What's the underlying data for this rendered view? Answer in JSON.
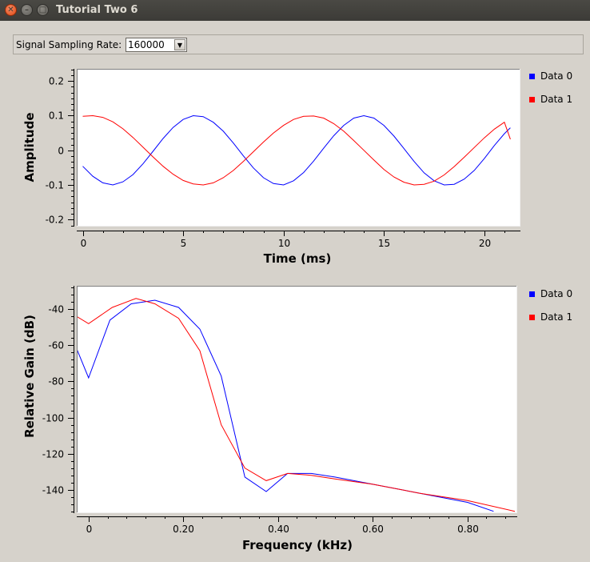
{
  "window": {
    "title": "Tutorial Two 6"
  },
  "toolbar": {
    "label": "Signal Sampling Rate:",
    "sample_rate": "160000"
  },
  "colors": {
    "series0": "#0000ff",
    "series1": "#ff0000",
    "plot_bg": "#ffffff",
    "window_bg": "#d6d2cb"
  },
  "chart_data": [
    {
      "type": "line",
      "xlabel": "Time (ms)",
      "ylabel": "Amplitude",
      "xlim": [
        -0.3,
        21.8
      ],
      "ylim": [
        -0.22,
        0.235
      ],
      "x_ticks": [
        "0",
        "5",
        "10",
        "15",
        "20"
      ],
      "x_tick_values": [
        0,
        5,
        10,
        15,
        20
      ],
      "y_ticks": [
        "0.2",
        "0.1",
        "0",
        "-0.1",
        "-0.2"
      ],
      "y_tick_values": [
        0.2,
        0.1,
        0,
        -0.1,
        -0.2
      ],
      "legend_position": "right",
      "series": [
        {
          "name": "Data 0",
          "color": "#0000ff",
          "x": [
            0,
            0.5,
            1,
            1.5,
            2,
            2.5,
            3,
            3.5,
            4,
            4.5,
            5,
            5.5,
            6,
            6.5,
            7,
            7.5,
            8,
            8.5,
            9,
            9.5,
            10,
            10.5,
            11,
            11.5,
            12,
            12.5,
            13,
            13.5,
            14,
            14.5,
            15,
            15.5,
            16,
            16.5,
            17,
            17.5,
            18,
            18.5,
            19,
            19.5,
            20,
            20.5,
            21,
            21.3
          ],
          "y": [
            -0.046,
            -0.075,
            -0.094,
            -0.1,
            -0.091,
            -0.07,
            -0.039,
            -0.003,
            0.034,
            0.066,
            0.089,
            0.1,
            0.097,
            0.081,
            0.055,
            0.021,
            -0.016,
            -0.051,
            -0.079,
            -0.096,
            -0.1,
            -0.088,
            -0.064,
            -0.031,
            0.006,
            0.042,
            0.072,
            0.093,
            0.1,
            0.093,
            0.072,
            0.041,
            0.005,
            -0.032,
            -0.065,
            -0.088,
            -0.1,
            -0.098,
            -0.083,
            -0.058,
            -0.024,
            0.014,
            0.048,
            0.065
          ]
        },
        {
          "name": "Data 1",
          "color": "#ff0000",
          "x": [
            0,
            0.5,
            1,
            1.5,
            2,
            2.5,
            3,
            3.5,
            4,
            4.5,
            5,
            5.5,
            6,
            6.5,
            7,
            7.5,
            8,
            8.5,
            9,
            9.5,
            10,
            10.5,
            11,
            11.5,
            12,
            12.5,
            13,
            13.5,
            14,
            14.5,
            15,
            15.5,
            16,
            16.5,
            17,
            17.5,
            18,
            18.5,
            19,
            19.5,
            20,
            20.5,
            21,
            21.3
          ],
          "y": [
            0.098,
            0.1,
            0.095,
            0.082,
            0.062,
            0.037,
            0.009,
            -0.019,
            -0.046,
            -0.069,
            -0.087,
            -0.097,
            -0.1,
            -0.094,
            -0.079,
            -0.058,
            -0.032,
            -0.004,
            0.024,
            0.05,
            0.072,
            0.089,
            0.098,
            0.099,
            0.093,
            0.077,
            0.055,
            0.028,
            0.0,
            -0.028,
            -0.055,
            -0.077,
            -0.092,
            -0.1,
            -0.098,
            -0.089,
            -0.071,
            -0.047,
            -0.02,
            0.008,
            0.036,
            0.061,
            0.081,
            0.032
          ]
        }
      ]
    },
    {
      "type": "line",
      "xlabel": "Frequency (kHz)",
      "ylabel": "Relative Gain (dB)",
      "xlim": [
        -0.025,
        0.905
      ],
      "ylim": [
        -153,
        -27
      ],
      "x_ticks": [
        "0",
        "0.20",
        "0.40",
        "0.60",
        "0.80"
      ],
      "x_tick_values": [
        0,
        0.2,
        0.4,
        0.6,
        0.8
      ],
      "y_ticks": [
        "-40",
        "-60",
        "-80",
        "-100",
        "-120",
        "-140"
      ],
      "y_tick_values": [
        -40,
        -60,
        -80,
        -100,
        -120,
        -140
      ],
      "legend_position": "right",
      "series": [
        {
          "name": "Data 0",
          "color": "#0000ff",
          "x": [
            -0.025,
            0,
            0.045,
            0.09,
            0.14,
            0.19,
            0.235,
            0.28,
            0.33,
            0.375,
            0.42,
            0.47,
            0.52,
            0.6,
            0.7,
            0.8,
            0.855
          ],
          "y": [
            -62,
            -78,
            -46,
            -37,
            -35,
            -39,
            -51,
            -77,
            -133,
            -141,
            -131,
            -131,
            -133,
            -137,
            -142,
            -147,
            -152
          ]
        },
        {
          "name": "Data 1",
          "color": "#ff0000",
          "x": [
            -0.025,
            0,
            0.05,
            0.1,
            0.14,
            0.19,
            0.235,
            0.28,
            0.33,
            0.375,
            0.42,
            0.47,
            0.52,
            0.6,
            0.7,
            0.8,
            0.9
          ],
          "y": [
            -44,
            -48,
            -39,
            -34,
            -37,
            -45,
            -63,
            -104,
            -128,
            -135,
            -131,
            -132,
            -134,
            -137,
            -142,
            -146,
            -152
          ]
        }
      ]
    }
  ]
}
